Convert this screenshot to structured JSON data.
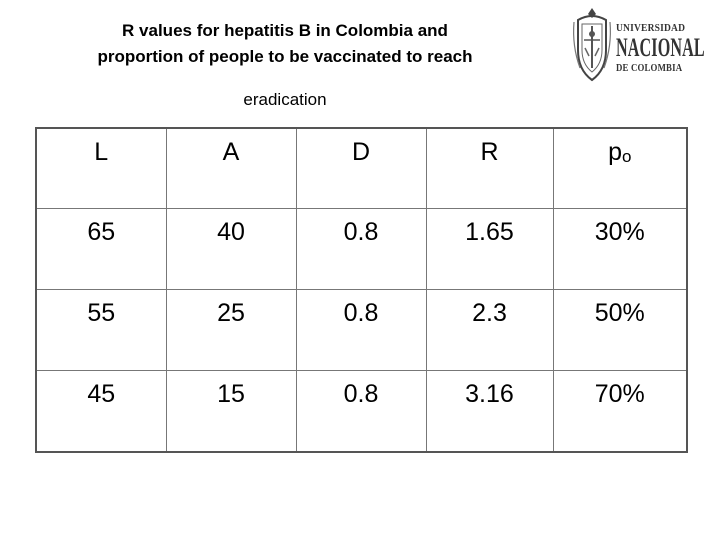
{
  "title": {
    "line1": "R values for hepatitis B in Colombia and",
    "line2": "proportion of people to be vaccinated to reach",
    "line3": "eradication"
  },
  "logo": {
    "line1": "UNIVERSIDAD",
    "line2": "NACIONAL",
    "line3": "DE COLOMBIA"
  },
  "table": {
    "headers": [
      "L",
      "A",
      "D",
      "R"
    ],
    "header_po_base": "p",
    "header_po_sub": "o",
    "rows": [
      [
        "65",
        "40",
        "0.8",
        "1.65",
        "30%"
      ],
      [
        "55",
        "25",
        "0.8",
        "2.3",
        "50%"
      ],
      [
        "45",
        "15",
        "0.8",
        "3.16",
        "70%"
      ]
    ]
  },
  "colors": {
    "border": "#555555",
    "text": "#000000",
    "logo": "#333333"
  }
}
